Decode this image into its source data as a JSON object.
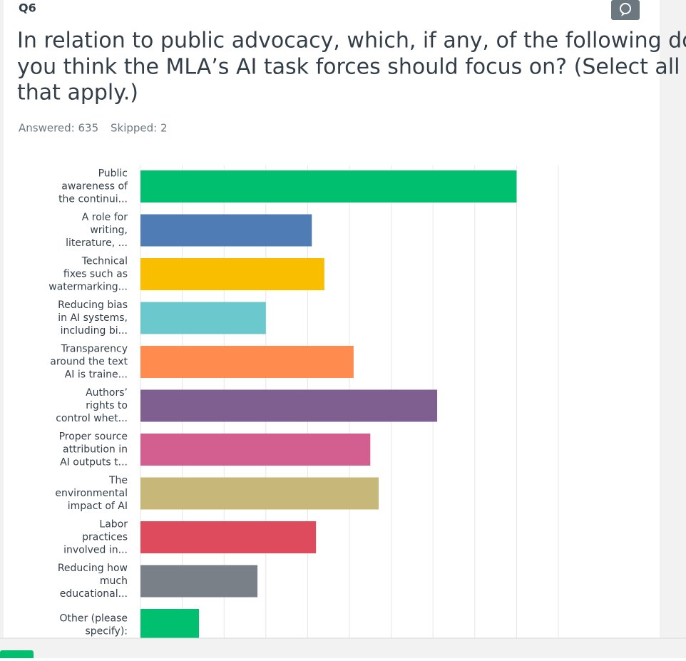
{
  "question": "Q6",
  "title_lines": [
    "In relation to public advocacy, which, if any, of the following do",
    "you think the MLA’s AI task forces should focus on? (Select all",
    "that apply.)"
  ],
  "answered": "Answered: 635",
  "skipped": "Skipped: 2",
  "chart_data": {
    "type": "bar",
    "orientation": "horizontal",
    "categories": [
      [
        "Public",
        "awareness of",
        "the continui..."
      ],
      [
        "A role for",
        "writing,",
        "literature, ..."
      ],
      [
        "Technical",
        "fixes such as",
        "watermarking..."
      ],
      [
        "Reducing bias",
        "in AI systems,",
        "including bi..."
      ],
      [
        "Transparency",
        "around the text",
        "AI is traine..."
      ],
      [
        "Authors’",
        "rights to",
        "control whet..."
      ],
      [
        "Proper source",
        "attribution in",
        "AI outputs t..."
      ],
      [
        "The",
        "environmental",
        "impact of AI"
      ],
      [
        "Labor",
        "practices",
        "involved in..."
      ],
      [
        "Reducing how",
        "much",
        "educational..."
      ],
      [
        "Other (please",
        "specify):"
      ]
    ],
    "values": [
      90,
      41,
      44,
      30,
      51,
      71,
      55,
      57,
      42,
      28,
      14
    ],
    "colors": [
      "#00bf6f",
      "#507cb6",
      "#f9be00",
      "#6bc8cd",
      "#ff8b4f",
      "#7f5f90",
      "#d25f90",
      "#c7b879",
      "#dd4b5d",
      "#7a8087",
      "#00bf6f"
    ],
    "xlim": [
      0,
      100
    ],
    "xticks": [
      0,
      10,
      20,
      30,
      40,
      50,
      60,
      70,
      80,
      90,
      100
    ],
    "grid": true
  }
}
